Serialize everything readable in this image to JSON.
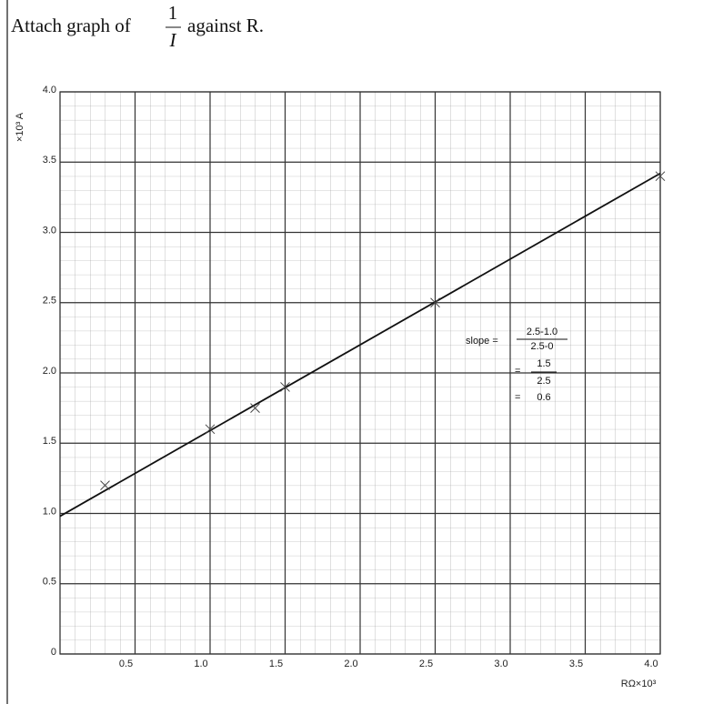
{
  "chart_data": {
    "type": "scatter",
    "title": "Attach graph of",
    "title_fraction": {
      "numerator": "1",
      "denominator": "I"
    },
    "title_end": "against R.",
    "x_label": "RΩ×10³",
    "y_label": "×10³ A",
    "xlim": [
      0,
      4
    ],
    "ylim": [
      0,
      4
    ],
    "xticks": [
      0.5,
      {
        "value": 1,
        "label": "1.0"
      },
      1.5,
      {
        "value": 2,
        "label": "2.0"
      },
      2.5,
      {
        "value": 3,
        "label": "3.0"
      },
      3.5,
      {
        "value": 4,
        "label": "4.0"
      }
    ],
    "yticks": [
      0,
      0.5,
      {
        "value": 1,
        "label": "1.0"
      },
      1.5,
      {
        "value": 2,
        "label": "2.0"
      },
      2.5,
      {
        "value": 3,
        "label": "3.0"
      },
      3.5,
      {
        "value": 4,
        "label": "4.0"
      }
    ],
    "grid": true,
    "color": "#444444",
    "x": [
      0.3,
      1.0,
      1.3,
      1.5,
      2.5,
      4.0
    ],
    "values": [
      1.2,
      1.6,
      1.75,
      1.9,
      2.5,
      3.4
    ],
    "fit": {
      "x": [
        0,
        4
      ],
      "values": [
        0.98,
        3.42
      ],
      "color": "#111111"
    },
    "annotations": {
      "slope": "slope =",
      "num1": "2.5-1.0",
      "den1": "2.5-0",
      "eq2": "=",
      "num2": "1.5",
      "den2": "2.5",
      "eq3": "=",
      "result": "0.6"
    }
  }
}
